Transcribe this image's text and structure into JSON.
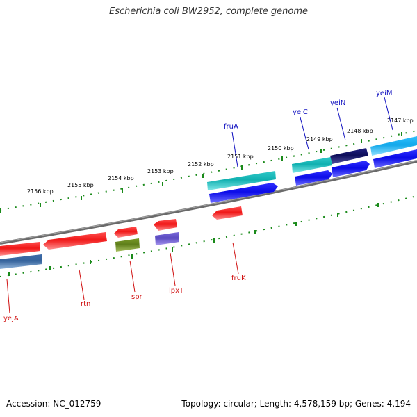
{
  "title": "Escherichia coli BW2952, complete genome",
  "footer": {
    "accession": "Accession: NC_012759",
    "topology": "Topology: circular; Length: 4,578,159 bp; Genes: 4,194"
  },
  "tick_labels": [
    "2156 kbp",
    "2155 kbp",
    "2154 kbp",
    "2153 kbp",
    "2152 kbp",
    "2151 kbp",
    "2150 kbp",
    "2149 kbp",
    "2148 kbp",
    "2147 kbp"
  ],
  "genes_top": [
    "fruA",
    "yeiC",
    "yeiN",
    "yeiM"
  ],
  "genes_bottom": [
    "yejA",
    "rtn",
    "spr",
    "lpxT",
    "fruK"
  ],
  "colors": {
    "backbone": "#7a7a7a",
    "ticks": "#1a8a1a",
    "red": "#f02020",
    "blue": "#1818ee",
    "teal": "#22c0c0",
    "navy": "#14146e",
    "sky": "#1eb4f0",
    "steel": "#4a78b0",
    "olive": "#6a8a20",
    "lavender": "#6a5acd"
  }
}
